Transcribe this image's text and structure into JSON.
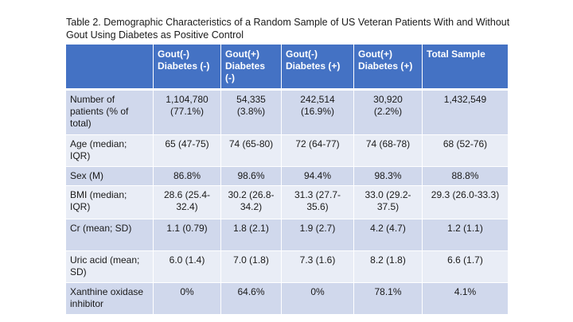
{
  "caption": "Table 2. Demographic Characteristics of a Random Sample of US Veteran Patients With and Without Gout Using Diabetes as Positive Control",
  "columns": [
    "",
    "Gout(-) Diabetes (-)",
    "Gout(+) Diabetes (-)",
    "Gout(-) Diabetes (+)",
    "Gout(+) Diabetes (+)",
    "Total Sample"
  ],
  "rows": [
    {
      "label": "Number of patients (% of total)",
      "values": [
        "1,104,780 (77.1%)",
        "54,335 (3.8%)",
        "242,514 (16.9%)",
        "30,920 (2.2%)",
        "1,432,549"
      ]
    },
    {
      "label": "Age (median; IQR)",
      "values": [
        "65 (47-75)",
        "74 (65-80)",
        "72 (64-77)",
        "74 (68-78)",
        "68 (52-76)"
      ]
    },
    {
      "label": "Sex (M)",
      "values": [
        "86.8%",
        "98.6%",
        "94.4%",
        "98.3%",
        "88.8%"
      ]
    },
    {
      "label": "BMI (median; IQR)",
      "values": [
        "28.6 (25.4-32.4)",
        "30.2 (26.8-34.2)",
        "31.3 (27.7-35.6)",
        "33.0 (29.2-37.5)",
        "29.3 (26.0-33.3)"
      ]
    },
    {
      "label": "Cr (mean; SD)",
      "values": [
        "1.1 (0.79)",
        "1.8 (2.1)",
        "1.9 (2.7)",
        "4.2 (4.7)",
        "1.2 (1.1)"
      ]
    },
    {
      "label": "Uric acid (mean; SD)",
      "values": [
        "6.0 (1.4)",
        "7.0 (1.8)",
        "7.3 (1.6)",
        "8.2 (1.8)",
        "6.6 (1.7)"
      ]
    },
    {
      "label": "Xanthine oxidase inhibitor",
      "values": [
        "0%",
        "64.6%",
        "0%",
        "78.1%",
        "4.1%"
      ]
    }
  ],
  "colors": {
    "header_bg": "#4472c4",
    "row_bg": "#d0d8ec",
    "row_alt_bg": "#e9edf6"
  }
}
